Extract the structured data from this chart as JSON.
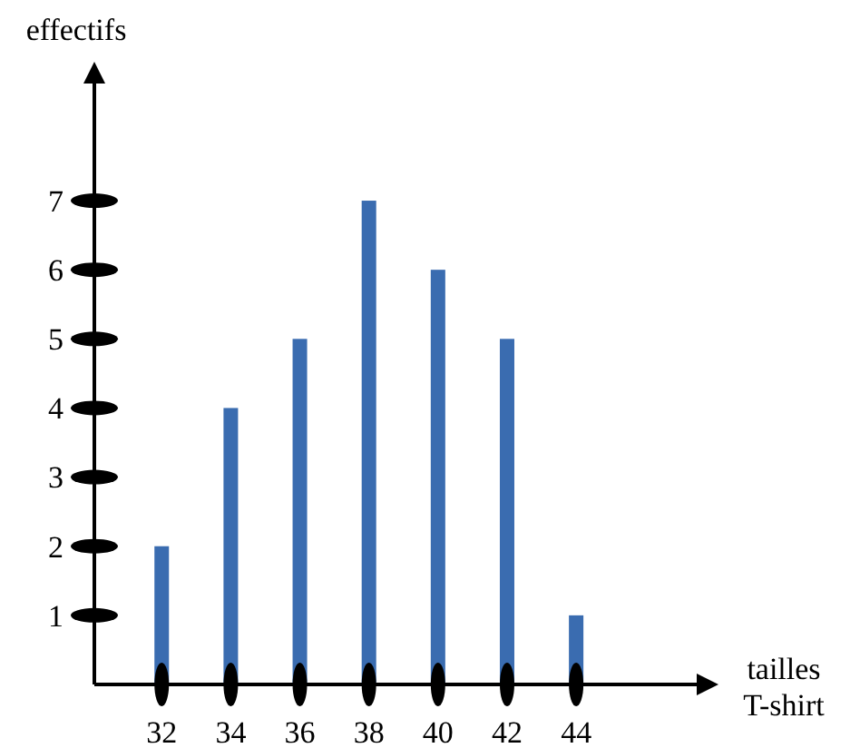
{
  "chart_data": {
    "type": "bar",
    "xlabel": "tailles T-shirt",
    "ylabel": "effectifs",
    "x": [
      32,
      34,
      36,
      38,
      40,
      42,
      44
    ],
    "values": [
      2,
      4,
      5,
      7,
      6,
      5,
      1
    ],
    "color": "#3a6cb0",
    "xlim": [
      30.05,
      47.7
    ],
    "xticks": [
      32,
      34,
      36,
      38,
      40,
      42,
      44
    ],
    "ylim": [
      0,
      8.8
    ],
    "yticks": [
      1,
      2,
      3,
      4,
      5,
      6,
      7
    ],
    "grid": false
  }
}
